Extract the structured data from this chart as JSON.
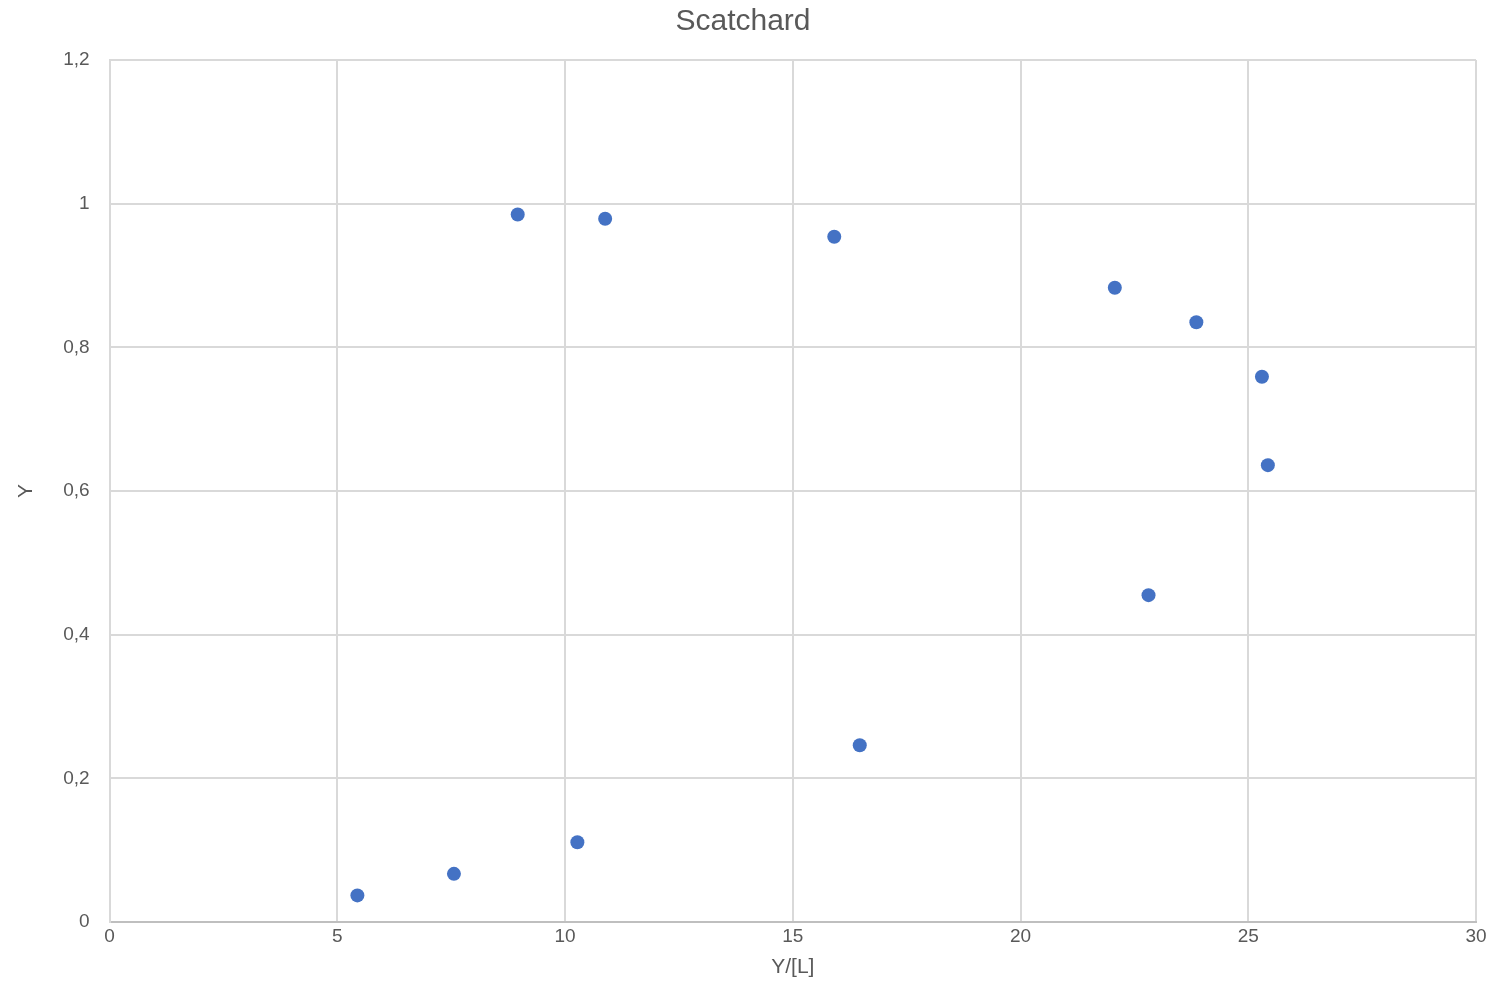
{
  "chart_data": {
    "type": "scatter",
    "title": "Scatchard",
    "xlabel": "Y/[L]",
    "ylabel": "Y",
    "x": [
      5.44,
      7.56,
      8.96,
      10.27,
      10.88,
      15.91,
      16.47,
      22.07,
      22.81,
      23.86,
      25.3,
      25.43
    ],
    "series": [
      {
        "color": "#4472c4",
        "values": [
          0.037,
          0.067,
          0.985,
          0.111,
          0.979,
          0.954,
          0.246,
          0.883,
          0.455,
          0.835,
          0.759,
          0.636
        ]
      }
    ],
    "xlim": [
      0,
      30
    ],
    "xticks": [
      0,
      5,
      10,
      15,
      20,
      25,
      30
    ],
    "ylim": [
      0,
      1.2
    ],
    "yticks": [
      0,
      {
        "value": 0.2,
        "label": "0,2"
      },
      {
        "value": 0.4,
        "label": "0,4"
      },
      {
        "value": 0.6,
        "label": "0,6"
      },
      {
        "value": 0.8,
        "label": "0,8"
      },
      1,
      {
        "value": 1.2,
        "label": "1,2"
      }
    ],
    "grid": true,
    "legend": false,
    "marker": "circle"
  }
}
